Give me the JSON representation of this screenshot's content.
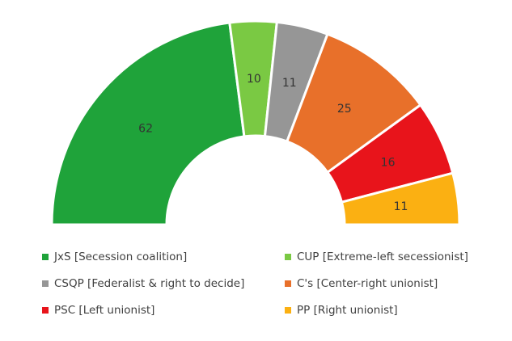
{
  "chart_data": {
    "type": "pie",
    "subtype": "semicircle-donut",
    "title": "",
    "categories": [
      "JxS [Secession coalition]",
      "CUP [Extreme-left secessionist]",
      "CSQP [Federalist & right to decide]",
      "C's [Center-right unionist]",
      "PSC [Left unionist]",
      "PP [Right unionist]"
    ],
    "values": [
      62,
      10,
      11,
      25,
      16,
      11
    ],
    "colors": [
      "#1fa33a",
      "#7ac943",
      "#969696",
      "#e8702a",
      "#e8141b",
      "#fbb012"
    ],
    "data_labels": [
      "62",
      "10",
      "11",
      "25",
      "16",
      "11"
    ],
    "legend_position": "bottom"
  }
}
